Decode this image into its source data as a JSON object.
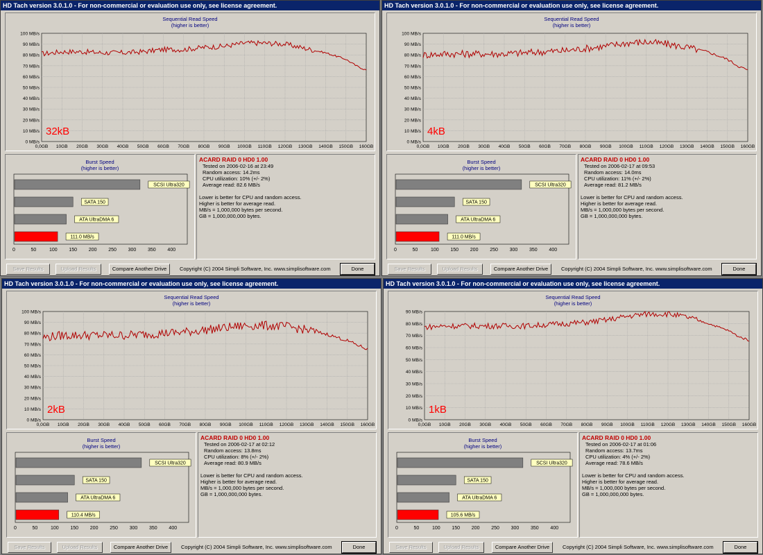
{
  "common": {
    "title": "HD Tach version 3.0.1.0  - For non-commercial or evaluation use only, see license agreement.",
    "seq_title": "Sequential Read Speed",
    "seq_subtitle": "(higher is better)",
    "burst_title": "Burst Speed",
    "burst_subtitle": "(higher is better)",
    "note_1": "Lower is better for CPU and random access.",
    "note_2": "Higher is better for average read.",
    "note_3": "MB/s = 1,000,000 bytes per second.",
    "note_4": "GB = 1,000,000,000 bytes.",
    "save_label": "Save Results",
    "upload_label": "Upload Results",
    "compare_label": "Compare Another Drive",
    "copyright": "Copyright (C) 2004 Simpli Software, Inc. www.simplisoftware.com",
    "done_label": "Done",
    "colors": {
      "trace": "#b00000",
      "bar_ref": "#808080",
      "bar_test": "#ff0000",
      "label_bg": "#ffffc0",
      "titlebar": "#0a246a"
    }
  },
  "windows": [
    {
      "block_size": "32kB",
      "drive": "ACARD RAID 0 HD0 1.00",
      "tested": "Tested on 2006-02-16 at 23:49",
      "random_access": "Random access: 14.2ms",
      "cpu": "CPU utilization: 10% (+/- 2%)",
      "avg": "Average read: 82.6 MB/s",
      "burst_label": "111.0 MB/s"
    },
    {
      "block_size": "4kB",
      "drive": "ACARD RAID 0 HD0 1.00",
      "tested": "Tested on 2006-02-17 at 09:53",
      "random_access": "Random access: 14.0ms",
      "cpu": "CPU utilization: 11% (+/- 2%)",
      "avg": "Average read: 81.2 MB/s",
      "burst_label": "111.0 MB/s"
    },
    {
      "block_size": "2kB",
      "drive": "ACARD RAID 0 HD0 1.00",
      "tested": "Tested on 2006-02-17 at 02:12",
      "random_access": "Random access: 13.8ms",
      "cpu": "CPU utilization: 8% (+/- 2%)",
      "avg": "Average read: 80.9 MB/s",
      "burst_label": "110.4 MB/s"
    },
    {
      "block_size": "1kB",
      "drive": "ACARD RAID 0 HD0 1.00",
      "tested": "Tested on 2006-02-17 at 01:06",
      "random_access": "Random access: 13.7ms",
      "cpu": "CPU utilization: 4% (+/- 2%)",
      "avg": "Average read: 78.6 MB/s",
      "burst_label": "105.6 MB/s"
    }
  ],
  "chart_data": [
    {
      "type": "line",
      "title": "Sequential Read Speed",
      "subtitle": "(higher is better)",
      "x_ticks": [
        "0,0GB",
        "10GB",
        "20GB",
        "30GB",
        "40GB",
        "50GB",
        "60GB",
        "70GB",
        "80GB",
        "90GB",
        "100GB",
        "110GB",
        "120GB",
        "130GB",
        "140GB",
        "150GB",
        "160GB"
      ],
      "y_ticks": [
        "0 MB/s",
        "10 MB/s",
        "20 MB/s",
        "30 MB/s",
        "40 MB/s",
        "50 MB/s",
        "60 MB/s",
        "70 MB/s",
        "80 MB/s",
        "90 MB/s",
        "100 MB/s"
      ],
      "xlim": [
        0,
        160
      ],
      "ylim": [
        0,
        100
      ],
      "grid": true,
      "series": [
        {
          "x": [
            0,
            10,
            20,
            30,
            40,
            50,
            60,
            70,
            80,
            90,
            100,
            110,
            120,
            130,
            140,
            150,
            155,
            160
          ],
          "y": [
            81,
            83,
            83,
            82,
            82,
            83,
            85,
            85,
            87,
            88,
            91,
            91,
            90,
            86,
            82,
            76,
            70,
            66
          ]
        },
        {
          "x": [
            0,
            10,
            20,
            30,
            40,
            50,
            60,
            70,
            80,
            90,
            100,
            110,
            120,
            130,
            140,
            150,
            155,
            160
          ],
          "y": [
            80,
            81,
            81,
            81,
            81,
            82,
            83,
            84,
            86,
            88,
            91,
            92,
            90,
            87,
            83,
            76,
            70,
            66
          ]
        },
        {
          "x": [
            0,
            10,
            20,
            30,
            40,
            50,
            60,
            70,
            80,
            90,
            100,
            110,
            120,
            130,
            140,
            150,
            155,
            160
          ],
          "y": [
            76,
            78,
            78,
            78,
            78,
            79,
            80,
            81,
            83,
            85,
            87,
            87,
            86,
            83,
            79,
            73,
            69,
            65
          ]
        },
        {
          "x": [
            0,
            10,
            20,
            30,
            40,
            50,
            60,
            70,
            80,
            90,
            100,
            110,
            120,
            130,
            140,
            150,
            155,
            160
          ],
          "y": [
            77,
            78,
            78,
            78,
            78,
            78,
            79,
            80,
            81,
            83,
            86,
            88,
            88,
            85,
            80,
            74,
            69,
            66
          ]
        }
      ],
      "y_max_by_window": [
        100,
        100,
        100,
        90
      ]
    },
    {
      "type": "bar",
      "title": "Burst Speed",
      "subtitle": "(higher is better)",
      "x_ticks": [
        "0",
        "50",
        "100",
        "150",
        "200",
        "250",
        "300",
        "350",
        "400"
      ],
      "xlim": [
        0,
        440
      ],
      "categories": [
        "SCSI Ultra320",
        "SATA 150",
        "ATA UltraDMA 6",
        "ACARD RAID 0 HD0 1.00"
      ],
      "values_by_window": [
        [
          320,
          150,
          133,
          111.0
        ],
        [
          320,
          150,
          133,
          111.0
        ],
        [
          320,
          150,
          133,
          110.4
        ],
        [
          320,
          150,
          133,
          105.6
        ]
      ]
    }
  ]
}
